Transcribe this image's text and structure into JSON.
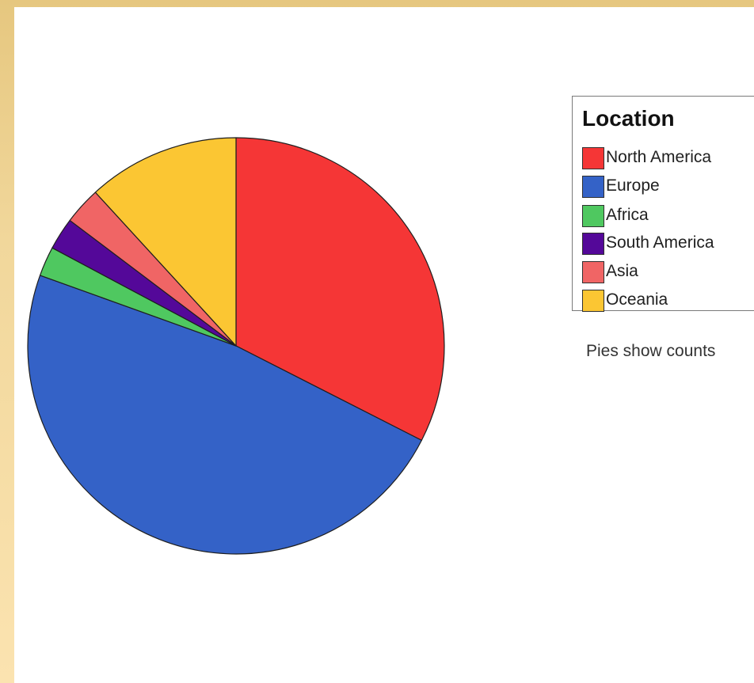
{
  "chart_data": {
    "type": "pie",
    "legend_title": "Location",
    "categories": [
      "North America",
      "Europe",
      "Africa",
      "South America",
      "Asia",
      "Oceania"
    ],
    "values": [
      32.5,
      48.0,
      2.3,
      2.5,
      2.9,
      11.8
    ],
    "colors": [
      "#f53636",
      "#3462c7",
      "#4fc860",
      "#540899",
      "#f06565",
      "#fbc633"
    ],
    "start_angle_deg": 0,
    "direction": "clockwise",
    "legend_position": "right",
    "note": "Pies show counts"
  }
}
